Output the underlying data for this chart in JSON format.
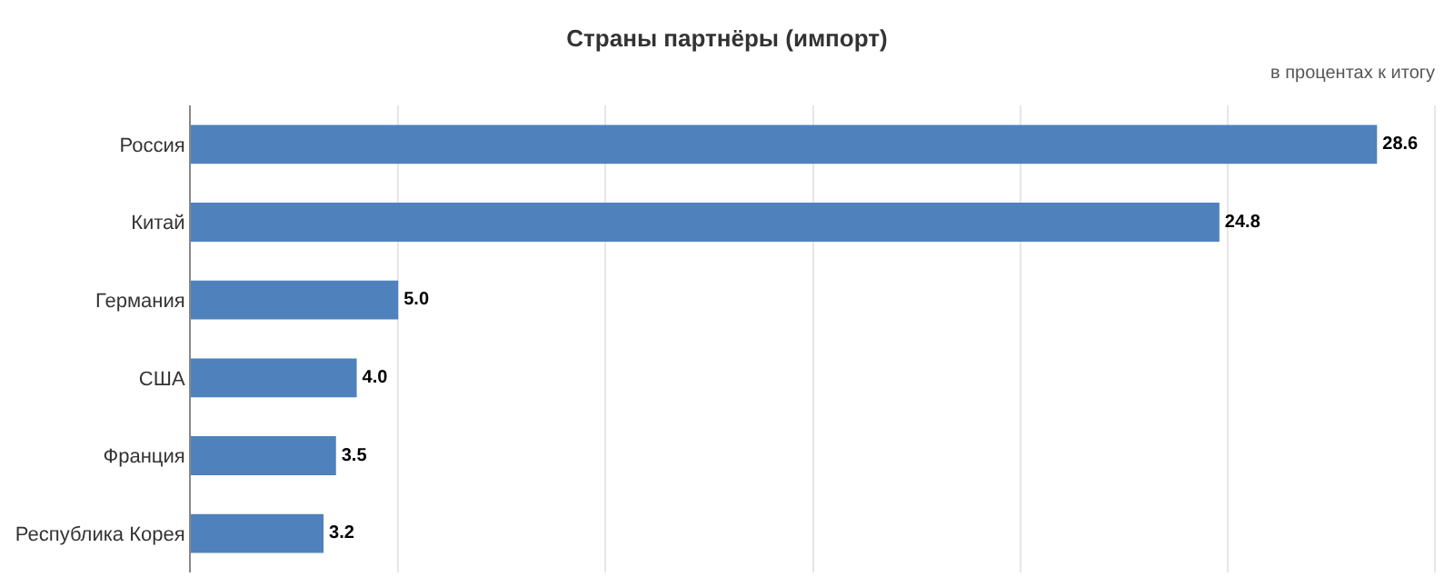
{
  "chart_data": {
    "type": "bar",
    "orientation": "horizontal",
    "title": "Страны партнёры (импорт)",
    "subtitle": "в процентах к итогу",
    "categories": [
      "Россия",
      "Китай",
      "Германия",
      "США",
      "Франция",
      "Республика Корея"
    ],
    "values": [
      28.6,
      24.8,
      5.0,
      4.0,
      3.5,
      3.2
    ],
    "value_labels": [
      "28.6",
      "24.8",
      "5.0",
      "4.0",
      "3.5",
      "3.2"
    ],
    "color": "#4f81bd",
    "grid": "x",
    "legend": false,
    "tick_labels": "y"
  }
}
